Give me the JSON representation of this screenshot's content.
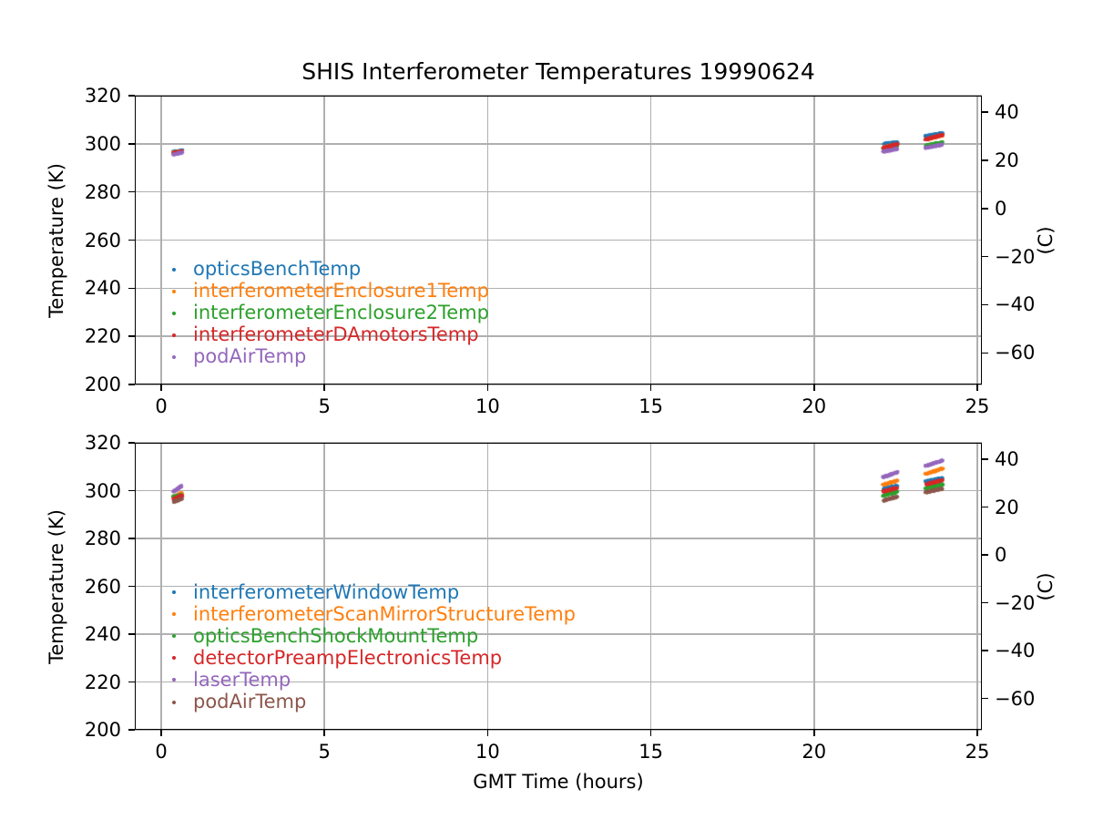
{
  "title": "SHIS Interferometer Temperatures 19990624",
  "xlabel": "GMT Time (hours)",
  "chart_data": [
    {
      "type": "scatter",
      "position": "top",
      "ylabel": "Temperature (K)",
      "right_ylabel": "(C)",
      "xlabel": "",
      "xlim": [
        -0.81,
        25.14
      ],
      "ylim": [
        200,
        320
      ],
      "xticks": [
        0,
        5,
        10,
        15,
        20,
        25
      ],
      "yticks": [
        200,
        220,
        240,
        260,
        280,
        300,
        320
      ],
      "right_yticks_celsius": [
        40,
        20,
        0,
        -20,
        -40,
        -60
      ],
      "grid": true,
      "legend_position": "center-left",
      "series": [
        {
          "name": "opticsBenchTemp",
          "color": "#1f77b4",
          "segments": [
            {
              "x": [
                0.38,
                0.63
              ],
              "y": [
                296.6,
                297.2
              ]
            },
            {
              "x": [
                22.12,
                22.55
              ],
              "y": [
                299.9,
                300.6
              ]
            },
            {
              "x": [
                23.42,
                23.93
              ],
              "y": [
                303.2,
                304.4
              ]
            }
          ]
        },
        {
          "name": "interferometerEnclosure1Temp",
          "color": "#ff7f0e",
          "segments": [
            {
              "x": [
                0.38,
                0.63
              ],
              "y": [
                296.3,
                296.8
              ]
            },
            {
              "x": [
                22.12,
                22.55
              ],
              "y": [
                298.5,
                299.8
              ]
            },
            {
              "x": [
                23.42,
                23.93
              ],
              "y": [
                301.7,
                303.5
              ]
            }
          ]
        },
        {
          "name": "interferometerEnclosure2Temp",
          "color": "#2ca02c",
          "segments": [
            {
              "x": [
                0.38,
                0.63
              ],
              "y": [
                296.1,
                296.6
              ]
            },
            {
              "x": [
                22.12,
                22.55
              ],
              "y": [
                297.9,
                299.0
              ]
            },
            {
              "x": [
                23.42,
                23.93
              ],
              "y": [
                299.3,
                300.6
              ]
            }
          ]
        },
        {
          "name": "interferometerDAmotorsTemp",
          "color": "#d62728",
          "segments": [
            {
              "x": [
                0.38,
                0.63
              ],
              "y": [
                296.2,
                296.8
              ]
            },
            {
              "x": [
                22.12,
                22.55
              ],
              "y": [
                298.3,
                299.9
              ]
            },
            {
              "x": [
                23.42,
                23.93
              ],
              "y": [
                301.8,
                303.7
              ]
            }
          ]
        },
        {
          "name": "podAirTemp",
          "color": "#9467bd",
          "segments": [
            {
              "x": [
                0.38,
                0.63
              ],
              "y": [
                295.6,
                296.3
              ]
            },
            {
              "x": [
                22.12,
                22.55
              ],
              "y": [
                296.7,
                297.9
              ]
            },
            {
              "x": [
                23.42,
                23.93
              ],
              "y": [
                298.3,
                299.7
              ]
            }
          ]
        }
      ]
    },
    {
      "type": "scatter",
      "position": "bottom",
      "ylabel": "Temperature (K)",
      "right_ylabel": "(C)",
      "xlabel": "GMT Time (hours)",
      "xlim": [
        -0.81,
        25.14
      ],
      "ylim": [
        200,
        320
      ],
      "xticks": [
        0,
        5,
        10,
        15,
        20,
        25
      ],
      "yticks": [
        200,
        220,
        240,
        260,
        280,
        300,
        320
      ],
      "right_yticks_celsius": [
        40,
        20,
        0,
        -20,
        -40,
        -60
      ],
      "grid": true,
      "legend_position": "center-left",
      "series": [
        {
          "name": "interferometerWindowTemp",
          "color": "#1f77b4",
          "segments": [
            {
              "x": [
                0.38,
                0.63
              ],
              "y": [
                297.2,
                297.9
              ]
            },
            {
              "x": [
                22.12,
                22.55
              ],
              "y": [
                300.7,
                302.0
              ]
            },
            {
              "x": [
                23.42,
                23.93
              ],
              "y": [
                303.8,
                305.3
              ]
            }
          ]
        },
        {
          "name": "interferometerScanMirrorStructureTemp",
          "color": "#ff7f0e",
          "segments": [
            {
              "x": [
                0.38,
                0.63
              ],
              "y": [
                297.3,
                299.0
              ]
            },
            {
              "x": [
                22.12,
                22.55
              ],
              "y": [
                302.5,
                304.2
              ]
            },
            {
              "x": [
                23.42,
                23.93
              ],
              "y": [
                307.0,
                309.2
              ]
            }
          ]
        },
        {
          "name": "opticsBenchShockMountTemp",
          "color": "#2ca02c",
          "segments": [
            {
              "x": [
                0.38,
                0.63
              ],
              "y": [
                297.5,
                298.2
              ]
            },
            {
              "x": [
                22.12,
                22.55
              ],
              "y": [
                297.9,
                299.5
              ]
            },
            {
              "x": [
                23.42,
                23.93
              ],
              "y": [
                300.9,
                302.6
              ]
            }
          ]
        },
        {
          "name": "detectorPreampElectronicsTemp",
          "color": "#d62728",
          "segments": [
            {
              "x": [
                0.38,
                0.63
              ],
              "y": [
                296.5,
                298.0
              ]
            },
            {
              "x": [
                22.12,
                22.55
              ],
              "y": [
                299.6,
                301.2
              ]
            },
            {
              "x": [
                23.42,
                23.93
              ],
              "y": [
                302.6,
                304.4
              ]
            }
          ]
        },
        {
          "name": "laserTemp",
          "color": "#9467bd",
          "segments": [
            {
              "x": [
                0.38,
                0.63
              ],
              "y": [
                299.6,
                302.0
              ]
            },
            {
              "x": [
                22.12,
                22.55
              ],
              "y": [
                305.6,
                307.7
              ]
            },
            {
              "x": [
                23.42,
                23.93
              ],
              "y": [
                310.3,
                312.6
              ]
            }
          ]
        },
        {
          "name": "podAirTemp",
          "color": "#8c564b",
          "segments": [
            {
              "x": [
                0.38,
                0.63
              ],
              "y": [
                295.3,
                296.6
              ]
            },
            {
              "x": [
                22.12,
                22.55
              ],
              "y": [
                295.8,
                297.5
              ]
            },
            {
              "x": [
                23.42,
                23.93
              ],
              "y": [
                299.2,
                300.9
              ]
            }
          ]
        }
      ]
    }
  ]
}
